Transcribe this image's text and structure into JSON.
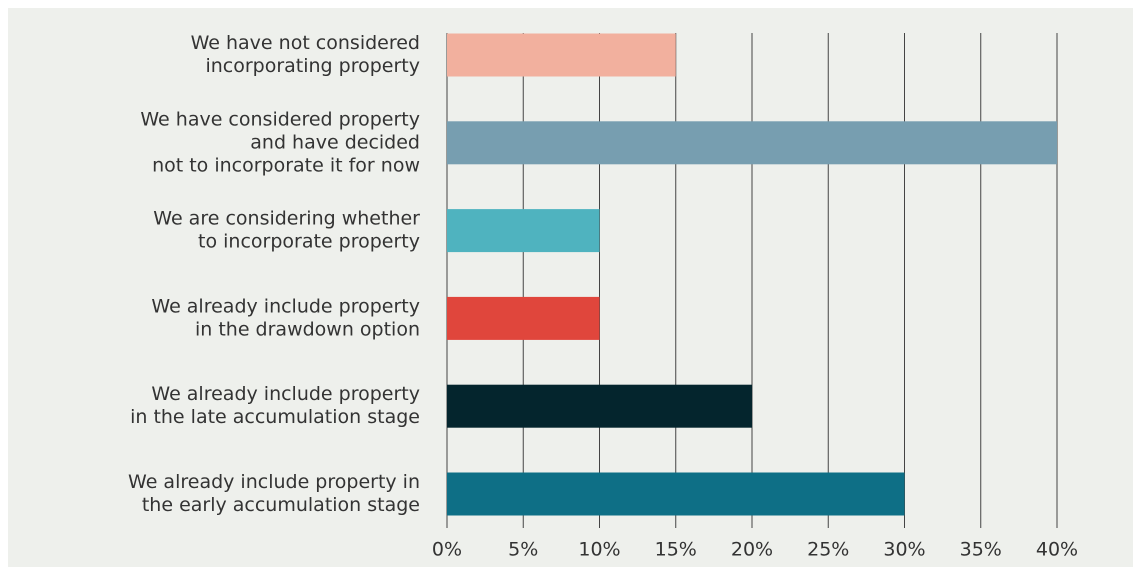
{
  "chart_data": {
    "type": "bar",
    "orientation": "horizontal",
    "categories": [
      [
        "We have not considered",
        "incorporating property"
      ],
      [
        "We have considered property",
        "and have decided",
        "not to incorporate it for now"
      ],
      [
        "We are considering whether",
        "to incorporate property"
      ],
      [
        "We already include property",
        "in the drawdown option"
      ],
      [
        "We already include property",
        "in the late accumulation stage"
      ],
      [
        "We already include property in",
        "the early accumulation stage"
      ]
    ],
    "values": [
      15,
      40,
      10,
      10,
      20,
      30
    ],
    "colors": [
      "#f2b09e",
      "#779eb0",
      "#4fb3bf",
      "#e0463c",
      "#04252d",
      "#0e6f86"
    ],
    "xlim": [
      0,
      40
    ],
    "xticks": [
      {
        "value": 0,
        "label": "0%"
      },
      {
        "value": 5,
        "label": "5%"
      },
      {
        "value": 10,
        "label": "10%"
      },
      {
        "value": 15,
        "label": "15%"
      },
      {
        "value": 20,
        "label": "20%"
      },
      {
        "value": 25,
        "label": "25%"
      },
      {
        "value": 30,
        "label": "30%"
      },
      {
        "value": 35,
        "label": "35%"
      },
      {
        "value": 40,
        "label": "40%"
      }
    ],
    "grid": true
  }
}
